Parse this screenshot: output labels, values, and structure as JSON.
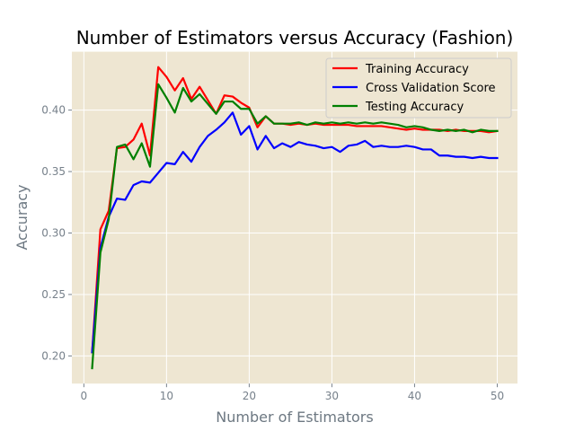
{
  "chart_data": {
    "type": "line",
    "title": "Number of Estimators versus Accuracy (Fashion)",
    "xlabel": "Number of Estimators",
    "ylabel": "Accuracy",
    "xlim": [
      -1.45,
      52.45
    ],
    "ylim": [
      0.1775,
      0.4475
    ],
    "xticks": [
      0,
      10,
      20,
      30,
      40,
      50
    ],
    "xtick_labels": [
      "0",
      "10",
      "20",
      "30",
      "40",
      "50"
    ],
    "yticks": [
      0.2,
      0.25,
      0.3,
      0.35,
      0.4
    ],
    "ytick_labels": [
      "0.20",
      "0.25",
      "0.30",
      "0.35",
      "0.40"
    ],
    "grid": true,
    "legend_position": "top-right",
    "background": "#eee6d2",
    "x": [
      1,
      2,
      3,
      4,
      5,
      6,
      7,
      8,
      9,
      10,
      11,
      12,
      13,
      14,
      15,
      16,
      17,
      18,
      19,
      20,
      21,
      22,
      23,
      24,
      25,
      26,
      27,
      28,
      29,
      30,
      31,
      32,
      33,
      34,
      35,
      36,
      37,
      38,
      39,
      40,
      41,
      42,
      43,
      44,
      45,
      46,
      47,
      48,
      49,
      50
    ],
    "series": [
      {
        "name": "Training Accuracy",
        "color": "#ff0000",
        "values": [
          0.203,
          0.303,
          0.318,
          0.369,
          0.37,
          0.376,
          0.389,
          0.363,
          0.435,
          0.427,
          0.416,
          0.426,
          0.409,
          0.419,
          0.408,
          0.397,
          0.412,
          0.411,
          0.406,
          0.402,
          0.386,
          0.395,
          0.389,
          0.389,
          0.388,
          0.389,
          0.388,
          0.389,
          0.388,
          0.388,
          0.388,
          0.388,
          0.387,
          0.387,
          0.387,
          0.387,
          0.386,
          0.385,
          0.384,
          0.385,
          0.384,
          0.384,
          0.384,
          0.383,
          0.384,
          0.383,
          0.383,
          0.383,
          0.382,
          0.383
        ]
      },
      {
        "name": "Cross Validation Score",
        "color": "#0000ff",
        "values": [
          0.203,
          0.288,
          0.313,
          0.328,
          0.327,
          0.339,
          0.342,
          0.341,
          0.349,
          0.357,
          0.356,
          0.366,
          0.358,
          0.37,
          0.379,
          0.384,
          0.39,
          0.398,
          0.38,
          0.387,
          0.368,
          0.379,
          0.369,
          0.373,
          0.37,
          0.374,
          0.372,
          0.371,
          0.369,
          0.37,
          0.366,
          0.371,
          0.372,
          0.375,
          0.37,
          0.371,
          0.37,
          0.37,
          0.371,
          0.37,
          0.368,
          0.368,
          0.363,
          0.363,
          0.362,
          0.362,
          0.361,
          0.362,
          0.361,
          0.361
        ]
      },
      {
        "name": "Testing Accuracy",
        "color": "#008000",
        "values": [
          0.19,
          0.284,
          0.311,
          0.37,
          0.372,
          0.36,
          0.373,
          0.354,
          0.421,
          0.41,
          0.398,
          0.418,
          0.407,
          0.413,
          0.405,
          0.397,
          0.407,
          0.407,
          0.401,
          0.401,
          0.389,
          0.395,
          0.389,
          0.389,
          0.389,
          0.39,
          0.388,
          0.39,
          0.389,
          0.39,
          0.389,
          0.39,
          0.389,
          0.39,
          0.389,
          0.39,
          0.389,
          0.388,
          0.386,
          0.387,
          0.386,
          0.384,
          0.383,
          0.384,
          0.383,
          0.384,
          0.382,
          0.384,
          0.383,
          0.383
        ]
      }
    ]
  }
}
